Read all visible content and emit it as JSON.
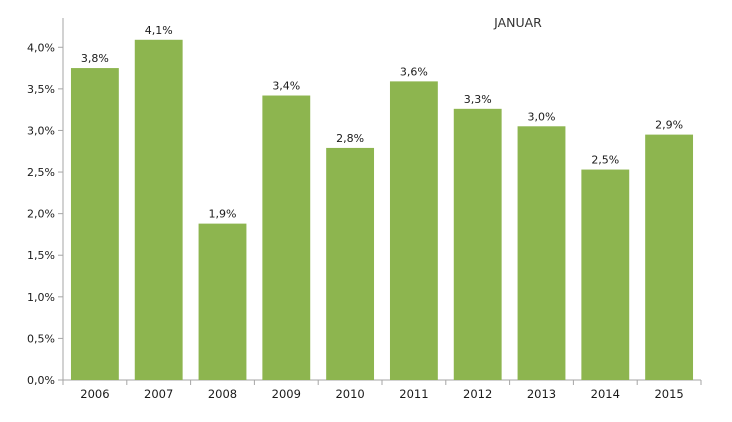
{
  "chart_data": {
    "type": "bar",
    "title": "JANUAR",
    "xlabel": "",
    "ylabel": "",
    "categories": [
      "2006",
      "2007",
      "2008",
      "2009",
      "2010",
      "2011",
      "2012",
      "2013",
      "2014",
      "2015"
    ],
    "values": [
      3.75,
      4.09,
      1.88,
      3.42,
      2.79,
      3.59,
      3.26,
      3.05,
      2.53,
      2.95
    ],
    "data_labels": [
      "3,8%",
      "4,1%",
      "1,9%",
      "3,4%",
      "2,8%",
      "3,6%",
      "3,3%",
      "3,0%",
      "2,5%",
      "2,9%"
    ],
    "ylim": [
      0,
      4.4
    ],
    "yticks": [
      0,
      0.5,
      1.0,
      1.5,
      2.0,
      2.5,
      3.0,
      3.5,
      4.0
    ],
    "ytick_labels": [
      "0,0%",
      "0,5%",
      "1,0%",
      "1,5%",
      "2,0%",
      "2,5%",
      "3,0%",
      "3,5%",
      "4,0%"
    ],
    "grid": false,
    "legend": "none",
    "bar_color": "#8db54f",
    "axis_color": "#a6a6a6"
  }
}
